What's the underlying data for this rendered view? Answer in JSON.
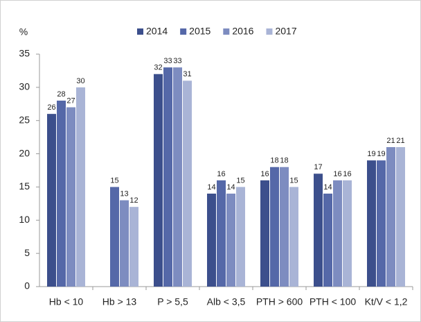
{
  "chart_data": {
    "type": "bar",
    "y_label": "%",
    "categories": [
      "Hb < 10",
      "Hb > 13",
      "P > 5,5",
      "Alb < 3,5",
      "PTH > 600",
      "PTH < 100",
      "Kt/V < 1,2"
    ],
    "series": [
      {
        "name": "2014",
        "color": "#3c4f8c",
        "values": [
          26,
          null,
          32,
          14,
          16,
          17,
          19
        ]
      },
      {
        "name": "2015",
        "color": "#5568a8",
        "values": [
          28,
          15,
          33,
          16,
          18,
          14,
          19
        ]
      },
      {
        "name": "2016",
        "color": "#7d8cc0",
        "values": [
          27,
          13,
          33,
          14,
          18,
          16,
          21
        ]
      },
      {
        "name": "2017",
        "color": "#a9b4d6",
        "values": [
          30,
          12,
          31,
          15,
          15,
          16,
          21
        ]
      }
    ],
    "ylim": [
      0,
      35
    ],
    "yticks": [
      0,
      5,
      10,
      15,
      20,
      25,
      30,
      35
    ],
    "grid": false
  }
}
